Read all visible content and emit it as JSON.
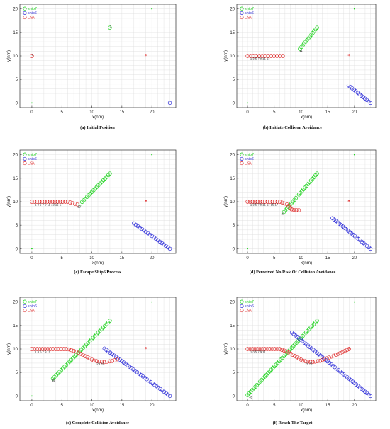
{
  "colors": {
    "ship7": "#19d119",
    "ship6": "#2a2ad8",
    "usv": "#e03030",
    "grid": "#dcdcdc",
    "axis": "#333333"
  },
  "chart_data": [
    {
      "type": "scatter",
      "caption": "(a)  Initial Position",
      "xlabel": "x(nm)",
      "ylabel": "y(nm)",
      "xlim": [
        -2,
        24
      ],
      "ylim": [
        -1,
        21
      ],
      "xticks": [
        0,
        5,
        10,
        15,
        20
      ],
      "yticks": [
        0,
        5,
        10,
        15,
        20
      ],
      "grid": true,
      "legend_position": "top-left",
      "legend": [
        "ship7",
        "ship6",
        "USV"
      ],
      "target": {
        "x": 19,
        "y": 10
      },
      "points_green": [
        [
          0,
          0
        ],
        [
          20,
          20
        ]
      ],
      "series": [
        {
          "name": "ship7",
          "start": [
            13,
            16
          ],
          "end": [
            13,
            16
          ],
          "n": 1
        },
        {
          "name": "ship6",
          "start": [
            23,
            0
          ],
          "end": [
            23,
            0
          ],
          "n": 1
        },
        {
          "name": "USV",
          "path": [
            [
              0,
              10
            ]
          ],
          "n": 1
        }
      ],
      "labels": [
        {
          "x": 0,
          "y": 10,
          "text": "1"
        },
        {
          "x": 13,
          "y": 16,
          "text": "1"
        }
      ]
    },
    {
      "type": "scatter",
      "caption": "(b)  Initiate Collision Avoidance",
      "xlabel": "x(nm)",
      "ylabel": "y(nm)",
      "xlim": [
        -2,
        24
      ],
      "ylim": [
        -1,
        21
      ],
      "xticks": [
        0,
        5,
        10,
        15,
        20
      ],
      "yticks": [
        0,
        5,
        10,
        15,
        20
      ],
      "grid": true,
      "legend_position": "top-left",
      "legend": [
        "ship7",
        "ship6",
        "USV"
      ],
      "target": {
        "x": 19,
        "y": 10
      },
      "points_green": [
        [
          0,
          0
        ],
        [
          20,
          20
        ]
      ],
      "series": [
        {
          "name": "ship7",
          "start": [
            13,
            16
          ],
          "end": [
            9.8,
            11.5
          ],
          "n": 13
        },
        {
          "name": "ship6",
          "start": [
            23,
            0
          ],
          "end": [
            18.9,
            3.7
          ],
          "n": 13
        },
        {
          "name": "USV",
          "path": [
            [
              0,
              10
            ],
            [
              6.6,
              10
            ]
          ],
          "n": 13
        }
      ],
      "labels": [
        {
          "x": 0.5,
          "y": 9.2,
          "text": "1  3  5  7  9  11 13"
        },
        {
          "x": 9.7,
          "y": 10.9,
          "text": "11"
        }
      ]
    },
    {
      "type": "scatter",
      "caption": "(c)  Escape Ship6 Process",
      "xlabel": "x(nm)",
      "ylabel": "y(nm)",
      "xlim": [
        -2,
        24
      ],
      "ylim": [
        -1,
        21
      ],
      "xticks": [
        0,
        5,
        10,
        15,
        20
      ],
      "yticks": [
        0,
        5,
        10,
        15,
        20
      ],
      "grid": true,
      "legend_position": "top-left",
      "legend": [
        "ship7",
        "ship6",
        "USV"
      ],
      "target": {
        "x": 19,
        "y": 10
      },
      "points_green": [
        [
          0,
          0
        ],
        [
          20,
          20
        ]
      ],
      "series": [
        {
          "name": "ship7",
          "start": [
            13,
            16
          ],
          "end": [
            8.1,
            9.6
          ],
          "n": 19
        },
        {
          "name": "ship6",
          "start": [
            23,
            0
          ],
          "end": [
            17,
            5.4
          ],
          "n": 19
        },
        {
          "name": "USV",
          "path": [
            [
              0,
              10
            ],
            [
              6,
              10
            ],
            [
              7.6,
              9.4
            ]
          ],
          "n": 19
        }
      ],
      "labels": [
        {
          "x": 0.5,
          "y": 9.2,
          "text": "1  3  5  7  9  11 13 15 17"
        },
        {
          "x": 7.6,
          "y": 8.7,
          "text": "19"
        }
      ]
    },
    {
      "type": "scatter",
      "caption": "(d)  Perceived No Risk Of Collision Avoidance",
      "xlabel": "x(nm)",
      "ylabel": "y(nm)",
      "xlim": [
        -2,
        24
      ],
      "ylim": [
        -1,
        21
      ],
      "xticks": [
        0,
        5,
        10,
        15,
        20
      ],
      "yticks": [
        0,
        5,
        10,
        15,
        20
      ],
      "grid": true,
      "legend_position": "top-left",
      "legend": [
        "ship7",
        "ship6",
        "USV"
      ],
      "target": {
        "x": 19,
        "y": 10
      },
      "points_green": [
        [
          0,
          0
        ],
        [
          20,
          20
        ]
      ],
      "series": [
        {
          "name": "ship7",
          "start": [
            13,
            16
          ],
          "end": [
            6.8,
            7.8
          ],
          "n": 23
        },
        {
          "name": "ship6",
          "start": [
            23,
            0
          ],
          "end": [
            15.9,
            6.5
          ],
          "n": 23
        },
        {
          "name": "USV",
          "path": [
            [
              0,
              10
            ],
            [
              6,
              10
            ],
            [
              7.5,
              9.4
            ],
            [
              8.3,
              8.3
            ],
            [
              9.6,
              8.2
            ]
          ],
          "n": 23
        }
      ],
      "labels": [
        {
          "x": 0.5,
          "y": 9.2,
          "text": "1  3  5  7  9  11 13 15 17"
        },
        {
          "x": 6.3,
          "y": 7.2,
          "text": "23"
        }
      ]
    },
    {
      "type": "scatter",
      "caption": "(e)  Complete Collision Avoidance",
      "xlabel": "x(nm)",
      "ylabel": "y(nm)",
      "xlim": [
        -2,
        24
      ],
      "ylim": [
        -1,
        21
      ],
      "xticks": [
        0,
        5,
        10,
        15,
        20
      ],
      "yticks": [
        0,
        5,
        10,
        15,
        20
      ],
      "grid": true,
      "legend_position": "top-left",
      "legend": [
        "ship7",
        "ship6",
        "USV"
      ],
      "target": {
        "x": 19,
        "y": 10
      },
      "points_green": [
        [
          0,
          0
        ],
        [
          20,
          20
        ]
      ],
      "series": [
        {
          "name": "ship7",
          "start": [
            13,
            16
          ],
          "end": [
            3.5,
            3.7
          ],
          "n": 35
        },
        {
          "name": "ship6",
          "start": [
            23,
            0
          ],
          "end": [
            12.1,
            10.1
          ],
          "n": 35
        },
        {
          "name": "USV",
          "path": [
            [
              0,
              10
            ],
            [
              6,
              10
            ],
            [
              7.5,
              9.4
            ],
            [
              9,
              8.4
            ],
            [
              10.4,
              7.5
            ],
            [
              12,
              7.2
            ],
            [
              13.6,
              7.5
            ],
            [
              14.2,
              7.8
            ]
          ],
          "n": 35
        }
      ],
      "labels": [
        {
          "x": 0.5,
          "y": 9.2,
          "text": "1  3  5  7  9  11"
        },
        {
          "x": 10.8,
          "y": 6.6,
          "text": "29 31"
        },
        {
          "x": 3.3,
          "y": 3.1,
          "text": "35"
        }
      ]
    },
    {
      "type": "scatter",
      "caption": "(f)  Reach The Target",
      "xlabel": "x(nm)",
      "ylabel": "y(nm)",
      "xlim": [
        -2,
        24
      ],
      "ylim": [
        -1,
        21
      ],
      "xticks": [
        0,
        5,
        10,
        15,
        20
      ],
      "yticks": [
        0,
        5,
        10,
        15,
        20
      ],
      "grid": true,
      "legend_position": "top-left",
      "legend": [
        "ship7",
        "ship6",
        "USV"
      ],
      "target": {
        "x": 19,
        "y": 10
      },
      "points_green": [
        [
          0,
          0
        ],
        [
          20,
          20
        ]
      ],
      "series": [
        {
          "name": "ship7",
          "start": [
            13,
            16
          ],
          "end": [
            0,
            0.2
          ],
          "n": 45
        },
        {
          "name": "ship6",
          "start": [
            23,
            0
          ],
          "end": [
            8.3,
            13.5
          ],
          "n": 45
        },
        {
          "name": "USV",
          "path": [
            [
              0,
              10
            ],
            [
              6,
              10
            ],
            [
              7.5,
              9.4
            ],
            [
              9,
              8.4
            ],
            [
              10.4,
              7.5
            ],
            [
              12,
              7.2
            ],
            [
              13.6,
              7.5
            ],
            [
              15.5,
              8.3
            ],
            [
              17.5,
              9.2
            ],
            [
              19,
              10
            ]
          ],
          "n": 45
        }
      ],
      "labels": [
        {
          "x": 0.5,
          "y": 9.2,
          "text": "1  3  5  7  9  11"
        },
        {
          "x": 10.8,
          "y": 6.6,
          "text": "29 31"
        },
        {
          "x": 0.3,
          "y": -0.5,
          "text": "45"
        }
      ]
    }
  ]
}
